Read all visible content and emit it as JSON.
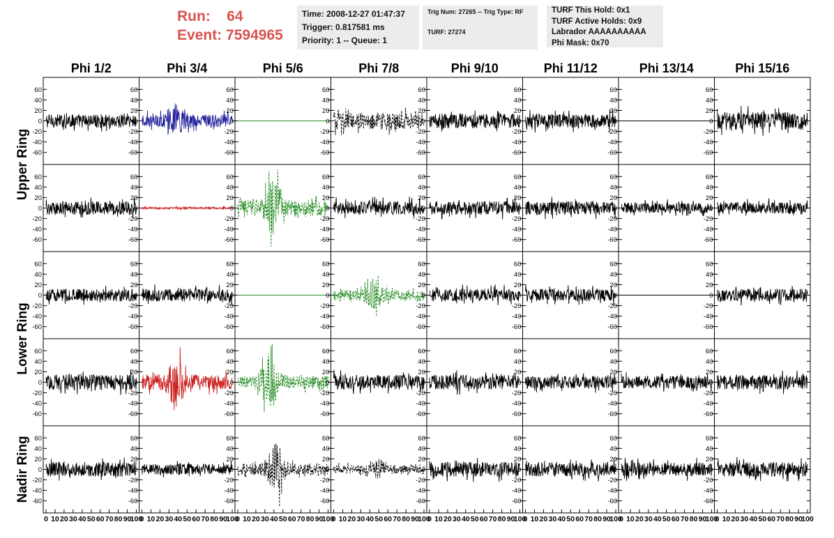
{
  "header": {
    "run_label": "Run:",
    "run_value": "64",
    "event_label": "Event:",
    "event_value": "7594965"
  },
  "info": {
    "time": "Time: 2008-12-27 01:47:37",
    "trigger": "Trigger: 0.817581 ms",
    "priority": "Priority: 1 -- Queue: 1",
    "trig_num": "Trig Num: 27265 -- Trig Type: RF",
    "turf": "TURF: 27274",
    "turf_this_hold": "TURF This Hold: 0x1",
    "turf_active_holds": "TURF Active Holds: 0x9",
    "labrador": "Labrador AAAAAAAAAA",
    "phi_mask": "Phi Mask: 0x70"
  },
  "columns": [
    "Phi 1/2",
    "Phi 3/4",
    "Phi 5/6",
    "Phi 7/8",
    "Phi 9/10",
    "Phi 11/12",
    "Phi 13/14",
    "Phi 15/16"
  ],
  "rings": [
    "Upper Ring",
    "Lower Ring",
    "Nadir Ring"
  ],
  "chart_data": {
    "type": "line",
    "xlim": [
      0,
      100
    ],
    "ylim": [
      -75,
      75
    ],
    "y_ticks": [
      -60,
      -40,
      -20,
      0,
      20,
      40,
      60
    ],
    "x_ticks": [
      0,
      10,
      20,
      30,
      40,
      50,
      60,
      70,
      80,
      90,
      100
    ],
    "x_tick_labels": [
      "0",
      "10",
      "20",
      "30",
      "40",
      "50",
      "60",
      "70",
      "80",
      "90",
      "100"
    ],
    "colors": {
      "black": "#000000",
      "blue": "#1f1f9a",
      "red": "#cc2020",
      "green": "#1f8a1f",
      "flat_green": "#2a8a2a"
    },
    "panels": [
      [
        {
          "color": "black",
          "style": "solid",
          "shape": "noise",
          "amplitude": 13
        },
        {
          "color": "blue",
          "style": "solid",
          "shape": "pulse",
          "amplitude": 12,
          "peak": 28,
          "center": 40
        },
        {
          "color": "flat_green",
          "style": "solid",
          "shape": "flat",
          "amplitude": 0
        },
        {
          "color": "black",
          "style": "dashed",
          "shape": "noise",
          "amplitude": 16
        },
        {
          "color": "black",
          "style": "solid",
          "shape": "noise",
          "amplitude": 14
        },
        {
          "color": "black",
          "style": "solid",
          "shape": "noise",
          "amplitude": 13
        },
        {
          "color": "black",
          "style": "solid",
          "shape": "flat",
          "amplitude": 0
        },
        {
          "color": "black",
          "style": "solid",
          "shape": "noise",
          "amplitude": 17
        }
      ],
      [
        {
          "color": "black",
          "style": "solid",
          "shape": "noise",
          "amplitude": 13
        },
        {
          "color": "red",
          "style": "solid",
          "shape": "noise",
          "amplitude": 2
        },
        {
          "color": "green",
          "style": "dashed",
          "shape": "pulse",
          "amplitude": 15,
          "peak": 55,
          "center": 40
        },
        {
          "color": "black",
          "style": "solid",
          "shape": "noise",
          "amplitude": 13
        },
        {
          "color": "black",
          "style": "solid",
          "shape": "noise",
          "amplitude": 13
        },
        {
          "color": "black",
          "style": "solid",
          "shape": "noise",
          "amplitude": 13
        },
        {
          "color": "black",
          "style": "solid",
          "shape": "noise",
          "amplitude": 10
        },
        {
          "color": "black",
          "style": "solid",
          "shape": "noise",
          "amplitude": 11
        }
      ],
      [
        {
          "color": "black",
          "style": "solid",
          "shape": "noise",
          "amplitude": 12
        },
        {
          "color": "black",
          "style": "solid",
          "shape": "noise",
          "amplitude": 12
        },
        {
          "color": "flat_green",
          "style": "solid",
          "shape": "flat",
          "amplitude": 0
        },
        {
          "color": "green",
          "style": "dashed",
          "shape": "pulse",
          "amplitude": 10,
          "peak": 30,
          "center": 45
        },
        {
          "color": "black",
          "style": "solid",
          "shape": "noise",
          "amplitude": 12
        },
        {
          "color": "black",
          "style": "solid",
          "shape": "noise",
          "amplitude": 12
        },
        {
          "color": "black",
          "style": "solid",
          "shape": "flat",
          "amplitude": 0
        },
        {
          "color": "black",
          "style": "solid",
          "shape": "noise",
          "amplitude": 12
        }
      ],
      [
        {
          "color": "black",
          "style": "solid",
          "shape": "noise",
          "amplitude": 15
        },
        {
          "color": "red",
          "style": "solid",
          "shape": "pulse",
          "amplitude": 15,
          "peak": 48,
          "center": 38
        },
        {
          "color": "green",
          "style": "dashed",
          "shape": "pulse",
          "amplitude": 12,
          "peak": 55,
          "center": 35
        },
        {
          "color": "black",
          "style": "solid",
          "shape": "noise",
          "amplitude": 14
        },
        {
          "color": "black",
          "style": "solid",
          "shape": "noise",
          "amplitude": 14
        },
        {
          "color": "black",
          "style": "solid",
          "shape": "noise",
          "amplitude": 12
        },
        {
          "color": "black",
          "style": "solid",
          "shape": "noise",
          "amplitude": 12
        },
        {
          "color": "black",
          "style": "solid",
          "shape": "noise",
          "amplitude": 14
        }
      ],
      [
        {
          "color": "black",
          "style": "solid",
          "shape": "noise",
          "amplitude": 14
        },
        {
          "color": "black",
          "style": "solid",
          "shape": "noise",
          "amplitude": 10
        },
        {
          "color": "black",
          "style": "dashed",
          "shape": "pulse",
          "amplitude": 10,
          "peak": 52,
          "center": 42
        },
        {
          "color": "black",
          "style": "dashed",
          "shape": "pulse",
          "amplitude": 8,
          "peak": 20,
          "center": 50
        },
        {
          "color": "black",
          "style": "solid",
          "shape": "noise",
          "amplitude": 14
        },
        {
          "color": "black",
          "style": "solid",
          "shape": "noise",
          "amplitude": 14
        },
        {
          "color": "black",
          "style": "solid",
          "shape": "noise",
          "amplitude": 13
        },
        {
          "color": "black",
          "style": "solid",
          "shape": "noise",
          "amplitude": 14
        }
      ]
    ]
  }
}
